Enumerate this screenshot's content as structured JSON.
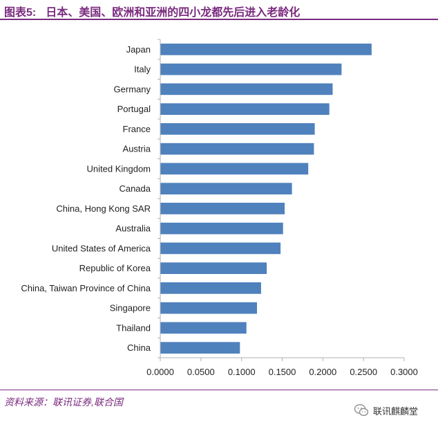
{
  "figure": {
    "label": "图表5:",
    "title": "日本、美国、欧洲和亚洲的四小龙都先后进入老龄化"
  },
  "source": "资料来源：联讯证券,联合国",
  "watermark": {
    "text": "联讯麒麟堂",
    "icon": "wechat-icon"
  },
  "colors": {
    "bar": "#4f81bd",
    "title": "#7a2a7e",
    "axis": "#b0b0b0"
  },
  "chart_data": {
    "type": "bar",
    "orientation": "horizontal",
    "categories": [
      "Japan",
      "Italy",
      "Germany",
      "Portugal",
      "France",
      "Austria",
      "United Kingdom",
      "Canada",
      "China, Hong Kong SAR",
      "Australia",
      "United States of America",
      "Republic of Korea",
      "China, Taiwan Province of China",
      "Singapore",
      "Thailand",
      "China"
    ],
    "values": [
      0.26,
      0.223,
      0.212,
      0.208,
      0.19,
      0.189,
      0.182,
      0.162,
      0.153,
      0.151,
      0.148,
      0.131,
      0.124,
      0.119,
      0.106,
      0.098
    ],
    "xlim": [
      0,
      0.3
    ],
    "xticks": [
      "0.0000",
      "0.0500",
      "0.1000",
      "0.1500",
      "0.2000",
      "0.2500",
      "0.3000"
    ],
    "grid": false,
    "legend": "none"
  }
}
